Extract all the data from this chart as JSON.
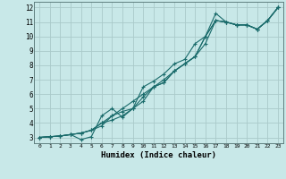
{
  "xlabel": "Humidex (Indice chaleur)",
  "background_color": "#c8e8e8",
  "grid_color": "#aacaca",
  "line_color": "#1a6b6b",
  "xlim_min": -0.5,
  "xlim_max": 23.5,
  "ylim_min": 2.6,
  "ylim_max": 12.4,
  "xticks": [
    0,
    1,
    2,
    3,
    4,
    5,
    6,
    7,
    8,
    9,
    10,
    11,
    12,
    13,
    14,
    15,
    16,
    17,
    18,
    19,
    20,
    21,
    22,
    23
  ],
  "yticks": [
    3,
    4,
    5,
    6,
    7,
    8,
    9,
    10,
    11,
    12
  ],
  "series": [
    [
      3.0,
      3.05,
      3.1,
      3.2,
      2.85,
      3.05,
      4.5,
      5.0,
      4.4,
      5.0,
      6.5,
      6.9,
      7.4,
      8.1,
      8.4,
      9.5,
      10.0,
      11.6,
      11.0,
      10.8,
      10.8,
      10.5,
      11.1,
      12.0
    ],
    [
      3.0,
      3.05,
      3.1,
      3.2,
      3.3,
      3.5,
      4.0,
      4.5,
      5.0,
      5.5,
      6.0,
      6.5,
      7.0,
      7.6,
      8.1,
      8.6,
      9.5,
      11.1,
      11.0,
      10.8,
      10.8,
      10.5,
      11.1,
      12.0
    ],
    [
      3.0,
      3.05,
      3.1,
      3.2,
      3.3,
      3.5,
      4.0,
      4.2,
      4.5,
      5.0,
      5.8,
      6.5,
      6.8,
      7.6,
      8.1,
      8.6,
      10.0,
      11.1,
      11.0,
      10.8,
      10.8,
      10.5,
      11.1,
      12.0
    ],
    [
      3.0,
      3.05,
      3.1,
      3.2,
      3.3,
      3.5,
      3.8,
      4.5,
      4.8,
      5.0,
      5.5,
      6.5,
      6.8,
      7.6,
      8.1,
      8.6,
      10.0,
      11.1,
      11.0,
      10.8,
      10.8,
      10.5,
      11.1,
      12.0
    ]
  ]
}
